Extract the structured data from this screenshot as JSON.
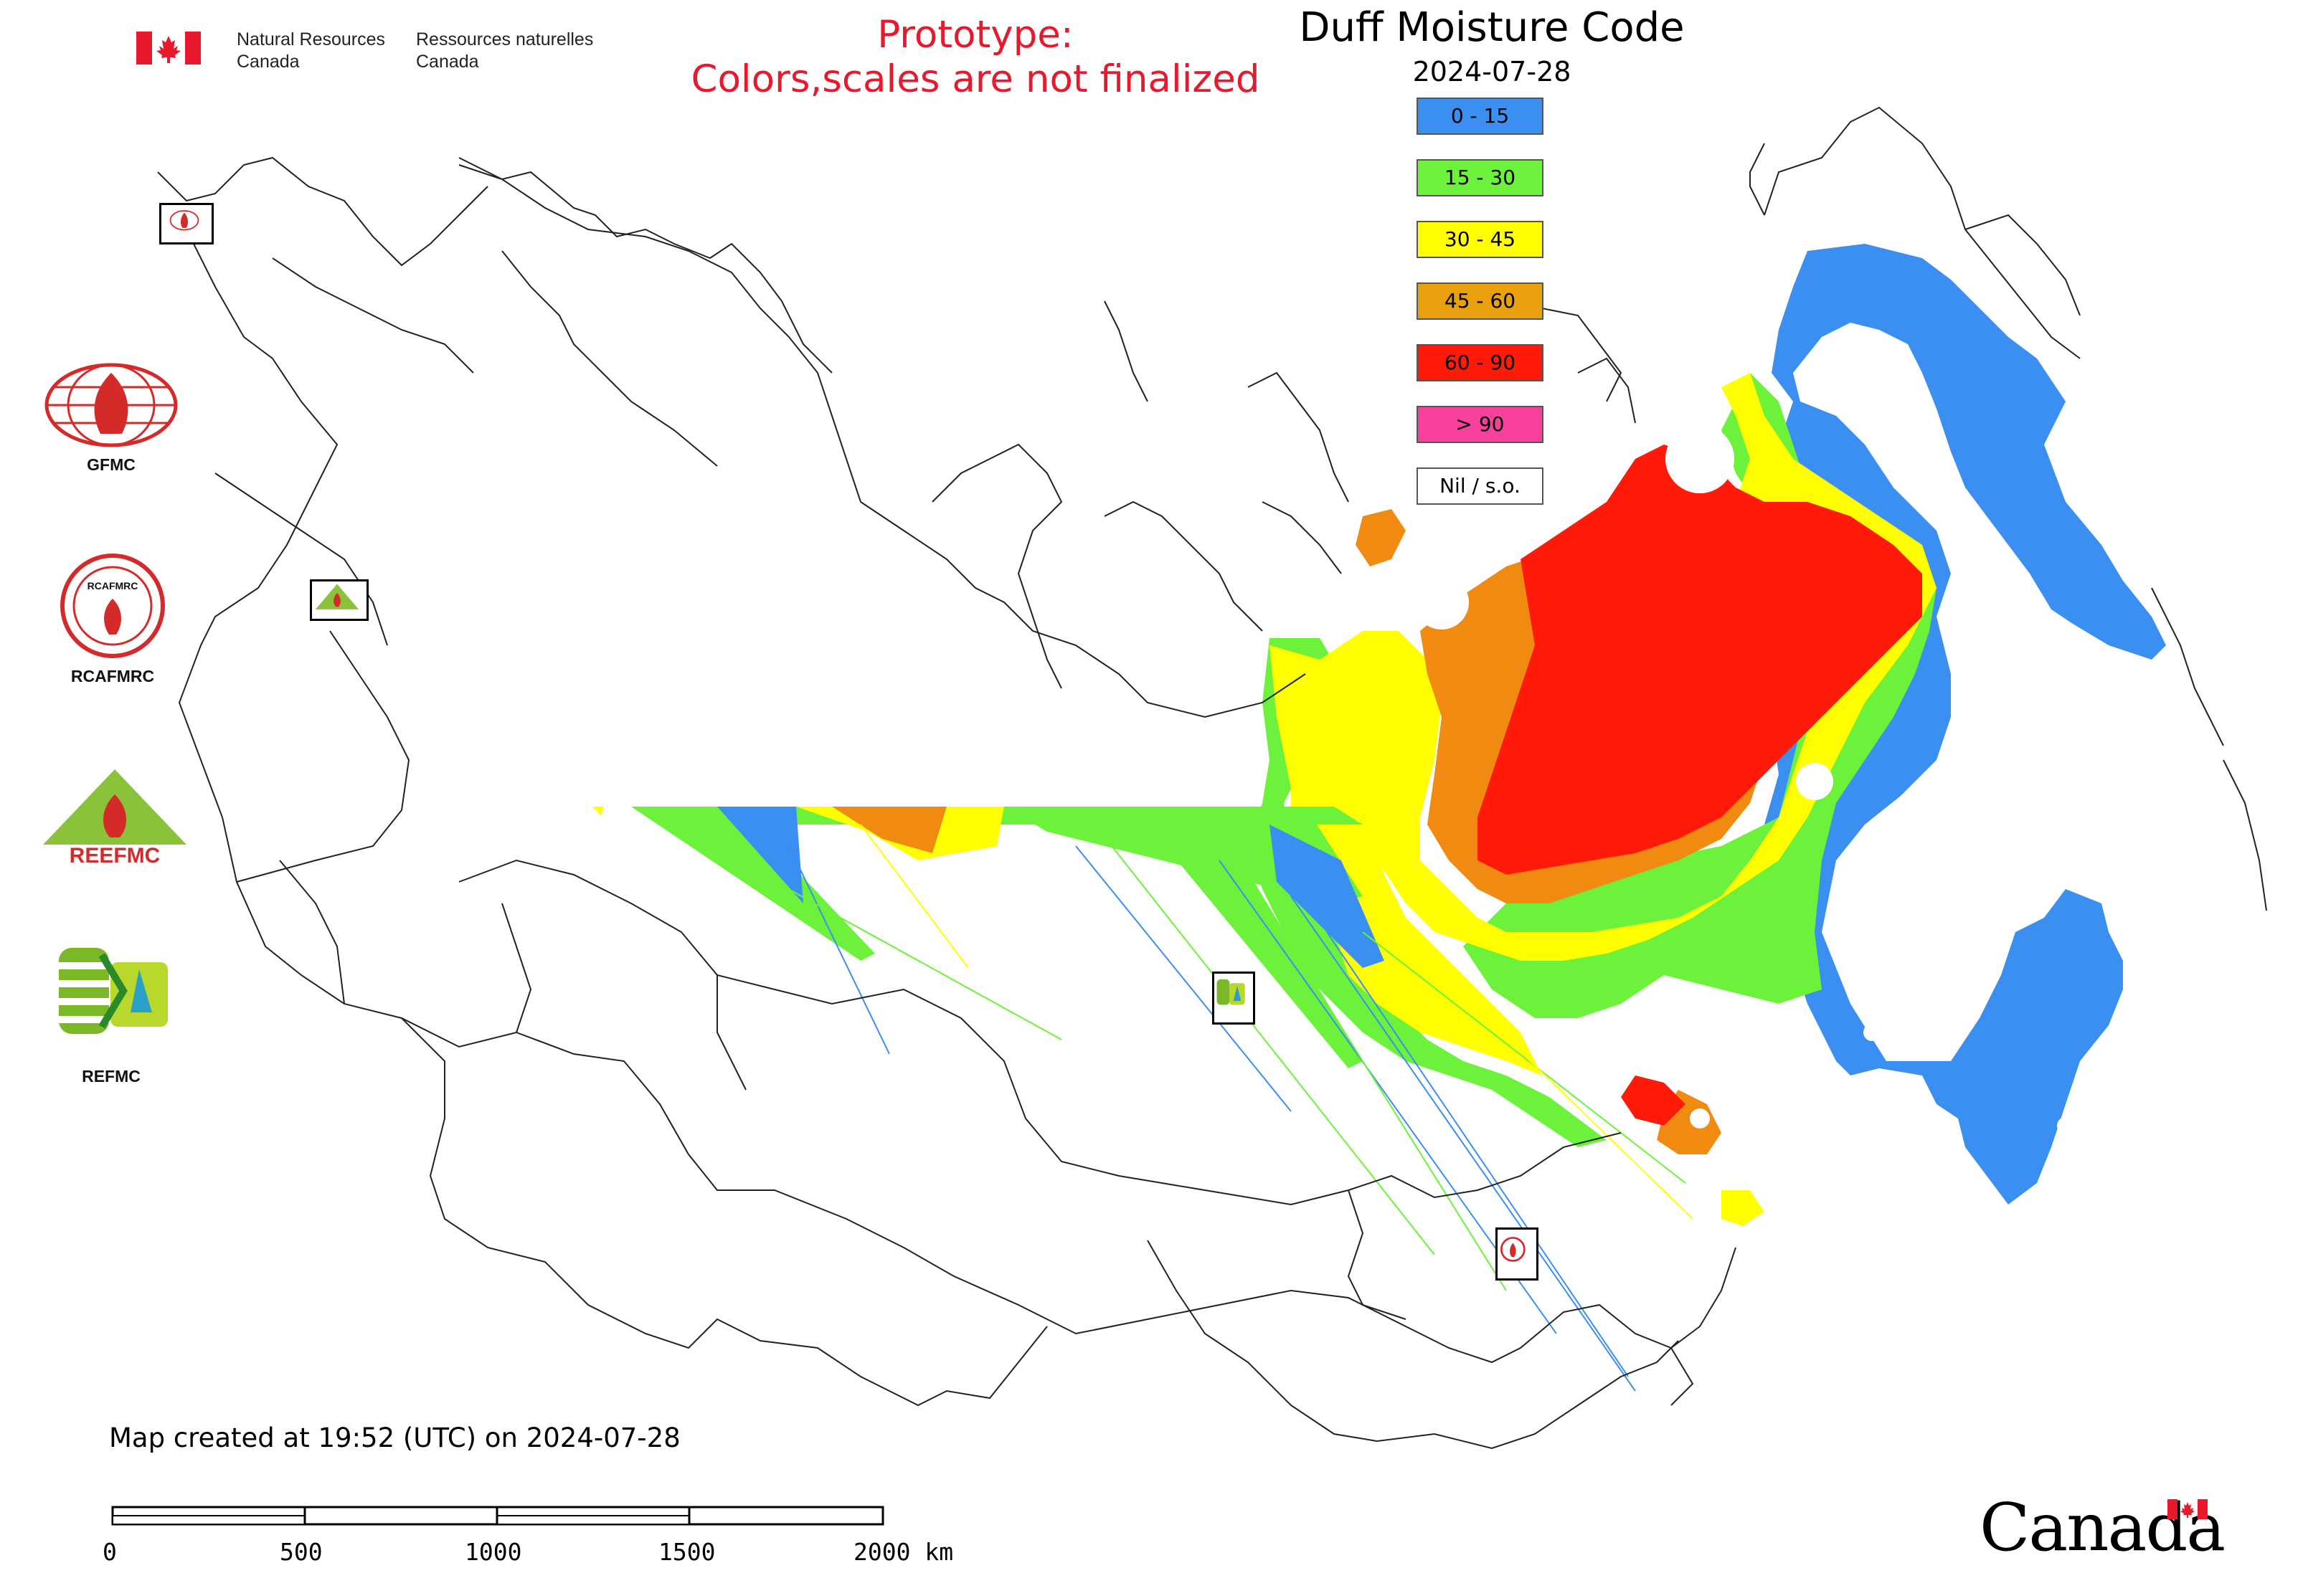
{
  "header": {
    "org_en_line1": "Natural Resources",
    "org_en_line2": "Canada",
    "org_fr_line1": "Ressources naturelles",
    "org_fr_line2": "Canada",
    "prototype_line1": "Prototype:",
    "prototype_line2": "Colors,scales are not finalized",
    "title": "Duff Moisture Code",
    "date": "2024-07-28"
  },
  "legend": [
    {
      "label": "0 - 15",
      "color": "#3a8ff0"
    },
    {
      "label": "15 - 30",
      "color": "#6cf23a"
    },
    {
      "label": "30 - 45",
      "color": "#ffff00"
    },
    {
      "label": "45 - 60",
      "color": "#e8a00c"
    },
    {
      "label": "60 - 90",
      "color": "#ff1a0a"
    },
    {
      "label": "> 90",
      "color": "#f7419c"
    },
    {
      "label": "Nil / s.o.",
      "color": "#ffffff"
    }
  ],
  "logos": {
    "gfmc": "GFMC",
    "rcafmrc": "RCAFMRC",
    "reefmc": "REEFMC",
    "refmc": "REFMC",
    "rcafmrc_badge_text": "RCAFMRC",
    "reefmc_badge_text": "REEFMC"
  },
  "footer": {
    "created": "Map created at 19:52 (UTC) on 2024-07-28",
    "scale_ticks": [
      "0",
      "500",
      "1000",
      "1500",
      "2000 km"
    ],
    "wordmark": "Canada"
  },
  "colors": {
    "blue": "#3a8ff0",
    "green": "#6cf23a",
    "yellow": "#ffff00",
    "orange": "#f08a10",
    "red": "#ff1a0a",
    "canada_red": "#e8192c",
    "logo_red": "#d42a2a",
    "logo_green": "#7ab828"
  },
  "icons": [
    "canada-flag-icon",
    "gfmc-globe-icon",
    "rcafmrc-seal-icon",
    "reefmc-triangle-icon",
    "refmc-sigma-icon",
    "canada-wordmark-flag-icon"
  ]
}
